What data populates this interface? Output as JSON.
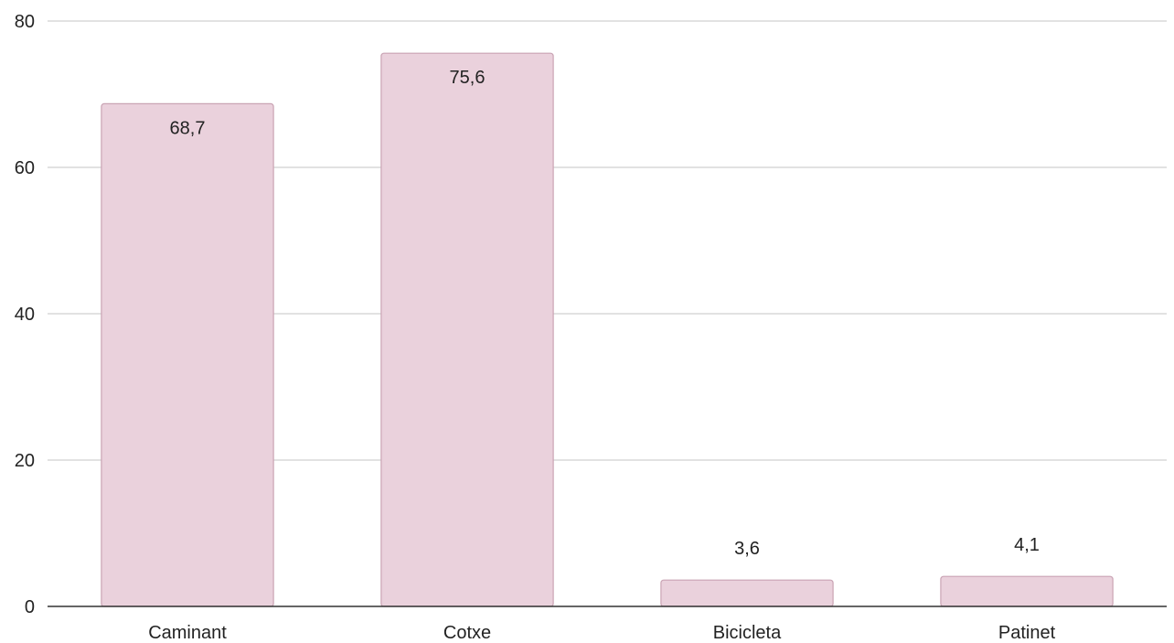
{
  "chart_data": {
    "type": "bar",
    "categories": [
      "Caminant",
      "Cotxe",
      "Bicicleta",
      "Patinet"
    ],
    "values": [
      68.7,
      75.6,
      3.6,
      4.1
    ],
    "value_labels": [
      "68,7",
      "75,6",
      "3,6",
      "4,1"
    ],
    "title": "",
    "xlabel": "",
    "ylabel": "",
    "ylim": [
      0,
      80
    ],
    "yticks": [
      0,
      20,
      40,
      60,
      80
    ],
    "grid": true,
    "legend": "none",
    "colors": {
      "bar_fill": "#ead1dc",
      "bar_stroke": "#c9a3b3",
      "grid": "#d9d9d9",
      "axis": "#333333",
      "text": "#222222"
    }
  }
}
